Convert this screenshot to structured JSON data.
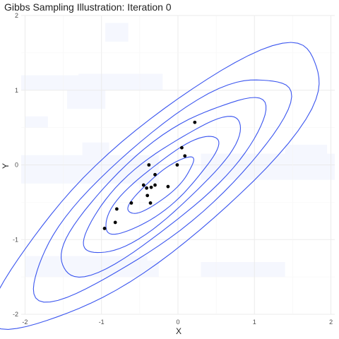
{
  "chart_data": {
    "type": "scatter",
    "title": "Gibbs Sampling Illustration: Iteration 0",
    "xlabel": "X",
    "ylabel": "Y",
    "xlim": [
      -2.05,
      2.05
    ],
    "ylim": [
      -2.0,
      2.0
    ],
    "x_ticks": [
      -2,
      -1,
      0,
      1,
      2
    ],
    "y_ticks": [
      -2,
      -1,
      0,
      1,
      2
    ],
    "x_tick_labels": [
      "-2",
      "-1",
      "0",
      "1",
      "2"
    ],
    "y_tick_labels": [
      "-2",
      "-1",
      "0",
      "1",
      "2"
    ],
    "grid": true,
    "points": [
      {
        "x": 0.22,
        "y": 0.57
      },
      {
        "x": 0.05,
        "y": 0.23
      },
      {
        "x": 0.09,
        "y": 0.12
      },
      {
        "x": -0.01,
        "y": 0.0
      },
      {
        "x": -0.38,
        "y": 0.0
      },
      {
        "x": -0.3,
        "y": -0.13
      },
      {
        "x": -0.45,
        "y": -0.27
      },
      {
        "x": -0.41,
        "y": -0.31
      },
      {
        "x": -0.35,
        "y": -0.3
      },
      {
        "x": -0.3,
        "y": -0.27
      },
      {
        "x": -0.13,
        "y": -0.29
      },
      {
        "x": -0.4,
        "y": -0.41
      },
      {
        "x": -0.61,
        "y": -0.51
      },
      {
        "x": -0.36,
        "y": -0.51
      },
      {
        "x": -0.8,
        "y": -0.59
      },
      {
        "x": -0.82,
        "y": -0.77
      },
      {
        "x": -0.96,
        "y": -0.85
      }
    ],
    "contours": {
      "center": [
        -0.22,
        -0.28
      ],
      "angle_deg": 41,
      "levels": [
        {
          "a": 0.55,
          "b": 0.15
        },
        {
          "a": 0.95,
          "b": 0.27
        },
        {
          "a": 1.32,
          "b": 0.38
        },
        {
          "a": 1.72,
          "b": 0.5
        },
        {
          "a": 2.15,
          "b": 0.62
        },
        {
          "a": 2.75,
          "b": 0.78
        }
      ]
    },
    "colors": {
      "contour": "#3a55ef",
      "points": "#000000",
      "background_tiles": "#f5f7fe"
    }
  }
}
